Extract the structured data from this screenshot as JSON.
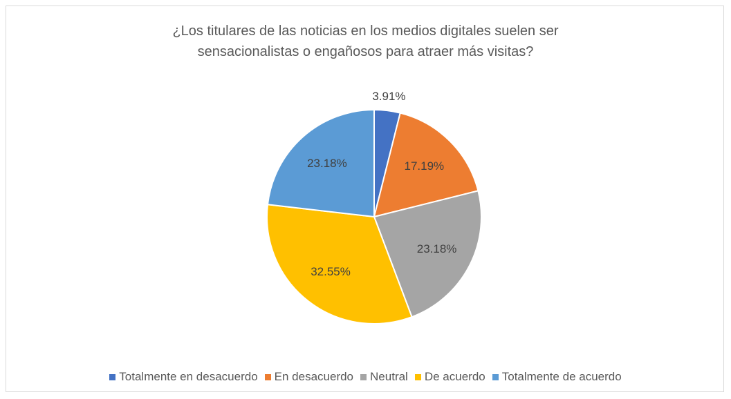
{
  "chart_data": {
    "type": "pie",
    "title": "¿Los titulares de las noticias en los medios digitales suelen ser sensacionalistas o engañosos para atraer más visitas?",
    "categories": [
      "Totalmente en desacuerdo",
      "En desacuerdo",
      "Neutral",
      "De acuerdo",
      "Totalmente de acuerdo"
    ],
    "values": [
      3.91,
      17.19,
      23.18,
      32.55,
      23.18
    ],
    "value_labels": [
      "3.91%",
      "17.19%",
      "23.18%",
      "32.55%",
      "23.18%"
    ],
    "colors": [
      "#4472c4",
      "#ed7d31",
      "#a5a5a5",
      "#ffc000",
      "#5b9bd5"
    ],
    "legend": "bottom"
  }
}
